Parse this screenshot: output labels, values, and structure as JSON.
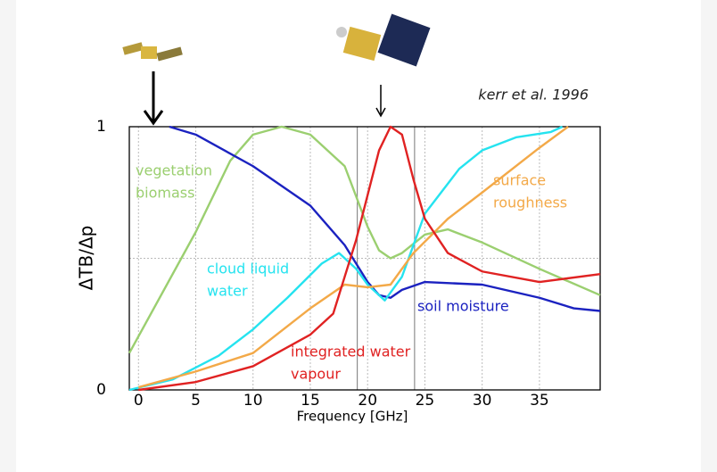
{
  "chart_data": {
    "type": "line",
    "x_label": "Frequency [GHz]",
    "y_label": "ΔTB/Δp",
    "annotation": "kerr et al. 1996",
    "xlim": [
      -0.8,
      40.3
    ],
    "xticks": [
      0,
      5,
      10,
      15,
      20,
      25,
      30,
      35
    ],
    "ylim": [
      0,
      1
    ],
    "yticks": [
      0,
      1
    ],
    "grid_y": [
      0.5
    ],
    "band_lines": [
      19.1,
      24.1
    ],
    "grid": true,
    "series": [
      {
        "labels": [
          "vegetation",
          "biomass"
        ],
        "color": "#9bcf70",
        "x": [
          -0.8,
          5,
          8,
          10,
          12.5,
          15,
          18,
          20,
          21,
          22,
          23,
          25,
          27,
          30,
          35,
          40.3
        ],
        "values": [
          0.14,
          0.6,
          0.87,
          0.97,
          1.0,
          0.97,
          0.85,
          0.62,
          0.53,
          0.5,
          0.52,
          0.59,
          0.61,
          0.56,
          0.46,
          0.36
        ]
      },
      {
        "labels": [
          "soil moisture"
        ],
        "color": "#1b22c0",
        "x": [
          2.7,
          5,
          10,
          15,
          18,
          20,
          21,
          22,
          23,
          25,
          30,
          35,
          38,
          40.3
        ],
        "values": [
          1.0,
          0.97,
          0.85,
          0.7,
          0.55,
          0.41,
          0.36,
          0.35,
          0.38,
          0.41,
          0.4,
          0.35,
          0.31,
          0.3
        ]
      },
      {
        "labels": [
          "cloud liquid",
          "water"
        ],
        "color": "#25e3ef",
        "x": [
          -0.8,
          3,
          7,
          10,
          13,
          16,
          17.5,
          19,
          20,
          21.5,
          23,
          25,
          28,
          30,
          33,
          36,
          37
        ],
        "values": [
          0,
          0.04,
          0.13,
          0.23,
          0.35,
          0.48,
          0.52,
          0.46,
          0.4,
          0.34,
          0.43,
          0.67,
          0.84,
          0.91,
          0.96,
          0.98,
          1.0
        ]
      },
      {
        "labels": [
          "surface",
          "roughness"
        ],
        "color": "#f3a948",
        "x": [
          0,
          5,
          10,
          15,
          18,
          20,
          22,
          24,
          27,
          30,
          35,
          37.5
        ],
        "values": [
          0.01,
          0.07,
          0.14,
          0.31,
          0.4,
          0.39,
          0.4,
          0.52,
          0.65,
          0.75,
          0.92,
          1.0
        ]
      },
      {
        "labels": [
          "integrated water",
          "vapour"
        ],
        "color": "#e02222",
        "x": [
          0,
          5,
          10,
          15,
          17,
          19,
          20,
          21,
          22,
          23,
          24,
          25,
          27,
          30,
          35,
          40.3
        ],
        "values": [
          0,
          0.03,
          0.09,
          0.21,
          0.29,
          0.57,
          0.74,
          0.91,
          1.0,
          0.97,
          0.8,
          0.65,
          0.52,
          0.45,
          0.41,
          0.44
        ]
      }
    ]
  }
}
